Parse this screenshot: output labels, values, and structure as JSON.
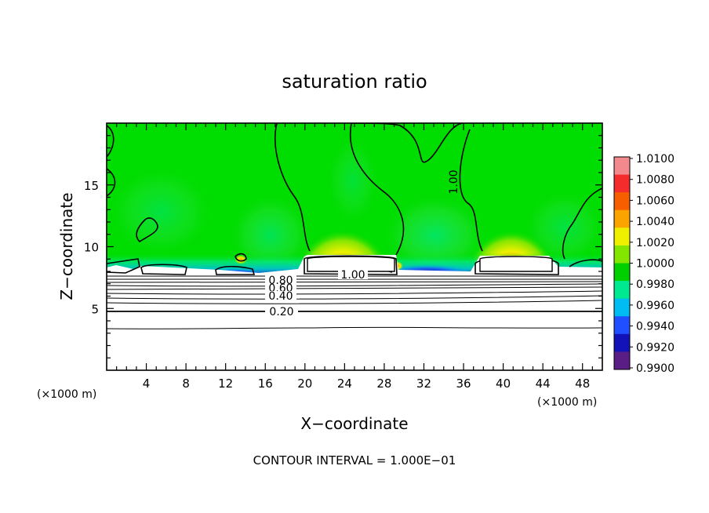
{
  "chart_data": {
    "type": "heatmap",
    "title": "saturation ratio",
    "xlabel": "X−coordinate",
    "ylabel": "Z−coordinate",
    "x_unit": "(×1000 m)",
    "y_unit": "(×1000 m)",
    "xlim": [
      0,
      50
    ],
    "ylim": [
      0,
      20
    ],
    "xticks": [
      4,
      8,
      12,
      16,
      20,
      24,
      28,
      32,
      36,
      40,
      44,
      48
    ],
    "xtick_labels": [
      "4",
      "8",
      "12",
      "16",
      "20",
      "24",
      "28",
      "32",
      "36",
      "40",
      "44",
      "48"
    ],
    "yticks": [
      5,
      10,
      15
    ],
    "ytick_labels": [
      "5",
      "10",
      "15"
    ],
    "colorbar": {
      "ticks": [
        "1.0100",
        "1.0080",
        "1.0060",
        "1.0040",
        "1.0020",
        "1.0000",
        "0.9980",
        "0.9960",
        "0.9940",
        "0.9920",
        "0.9900"
      ],
      "range": [
        0.99,
        1.01
      ],
      "colors": [
        "#f2898c",
        "#f52c2c",
        "#f65e00",
        "#fba400",
        "#eef000",
        "#83e600",
        "#00cf00",
        "#00e890",
        "#00bcf2",
        "#1f4fff",
        "#1212b8",
        "#5a1d86"
      ]
    },
    "contour_labels": [
      "1.00",
      "1.00",
      "0.80",
      "0.60",
      "0.40",
      "0.20"
    ],
    "contour_interval_text": "CONTOUR INTERVAL =  1.000E−01",
    "lower_levels": [
      0.2,
      0.4,
      0.6,
      0.8
    ],
    "orography": [
      {
        "x0": 20.2,
        "x1": 26.8,
        "top": 9.1
      },
      {
        "x0": 37.8,
        "x1": 45.2,
        "top": 9.1
      }
    ],
    "warm_maxima": [
      {
        "x": 23.5,
        "z": 9.5,
        "value": 1.006
      },
      {
        "x": 40.5,
        "z": 9.5,
        "value": 1.006
      }
    ],
    "grid": false
  }
}
